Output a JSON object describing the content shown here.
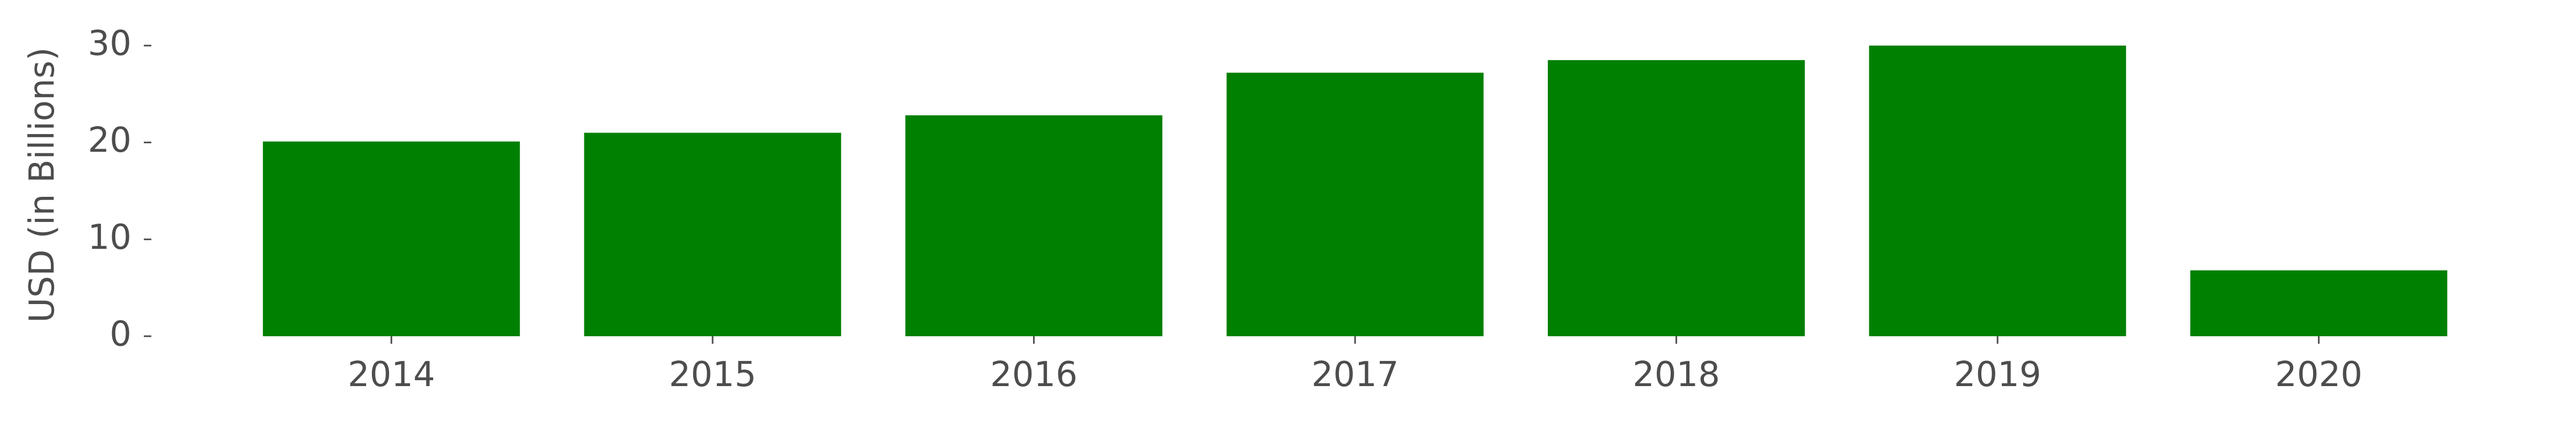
{
  "chart_data": {
    "type": "bar",
    "title": "",
    "xlabel": "",
    "ylabel": "USD (in Billions)",
    "categories": [
      "2014",
      "2015",
      "2016",
      "2017",
      "2018",
      "2019",
      "2020"
    ],
    "values": [
      20.1,
      21.0,
      22.8,
      27.2,
      28.5,
      30.0,
      6.8
    ],
    "ylim": [
      0,
      30
    ],
    "yticks": [
      0,
      10,
      20,
      30
    ],
    "grid": false,
    "legend": "none",
    "bar_color": "#008000",
    "text_color": "#4d4d4d"
  }
}
